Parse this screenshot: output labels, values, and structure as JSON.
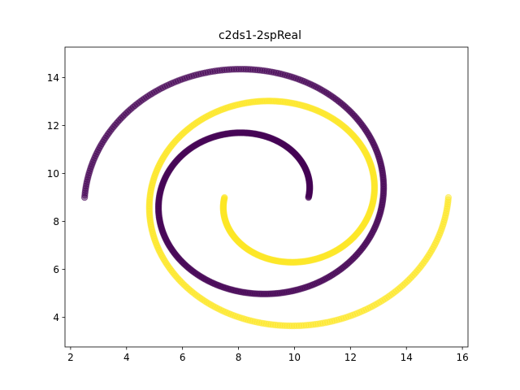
{
  "chart_data": {
    "type": "scatter",
    "title": "c2ds1-2spReal",
    "xlabel": "",
    "ylabel": "",
    "xlim": [
      1.8,
      16.2
    ],
    "ylim": [
      2.77,
      15.27
    ],
    "x_ticks": [
      2,
      4,
      6,
      8,
      10,
      12,
      14,
      16
    ],
    "y_ticks": [
      4,
      6,
      8,
      10,
      12,
      14
    ],
    "x_tick_labels": [
      "2",
      "4",
      "6",
      "8",
      "10",
      "12",
      "14",
      "16"
    ],
    "y_tick_labels": [
      "4",
      "6",
      "8",
      "10",
      "12",
      "14"
    ],
    "grid": false,
    "legend": "none",
    "marker": "circle",
    "marker_alpha": 0.5,
    "points_per_spiral": 600,
    "series": [
      {
        "class": 0,
        "color": "#440154",
        "description": "spiral starting at (10.5, 9) and winding outward to (2.5, 9.1)",
        "center": [
          8.5,
          9.0
        ],
        "start_radius": 2.0,
        "end_radius": 6.0,
        "start_angle_deg": 0,
        "end_angle_deg": 540
      },
      {
        "class": 1,
        "color": "#fde725",
        "description": "spiral starting at (7.5, 9) and winding outward to (15.5, 8.9)",
        "center": [
          9.5,
          9.0
        ],
        "start_radius": 2.0,
        "end_radius": 6.0,
        "start_angle_deg": 180,
        "end_angle_deg": 720
      }
    ]
  }
}
